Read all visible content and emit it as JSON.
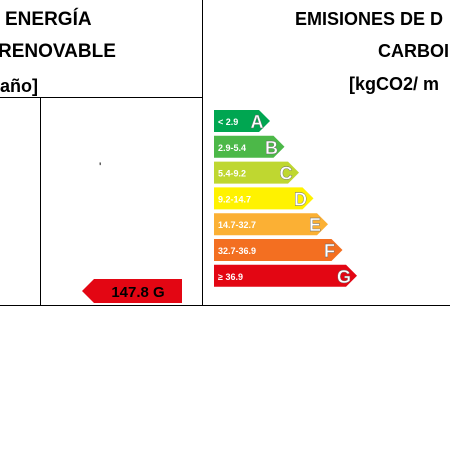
{
  "left_header": {
    "line1": "ENERGÍA",
    "line2": "RENOVABLE",
    "line3": "año]"
  },
  "right_header": {
    "line1": "EMISIONES DE D",
    "line2": "CARBOI",
    "line3": "[kgCO2/ m"
  },
  "tick_mark": "'",
  "current_rating": {
    "label": "147.8 G",
    "color": "#e30613"
  },
  "scale": [
    {
      "range": "< 2.9",
      "letter": "A",
      "color": "#00a651"
    },
    {
      "range": "2.9-5.4",
      "letter": "B",
      "color": "#4cb848"
    },
    {
      "range": "5.4-9.2",
      "letter": "C",
      "color": "#bfd730"
    },
    {
      "range": "9.2-14.7",
      "letter": "D",
      "color": "#fff200"
    },
    {
      "range": "14.7-32.7",
      "letter": "E",
      "color": "#fbb034"
    },
    {
      "range": "32.7-36.9",
      "letter": "F",
      "color": "#f36f21"
    },
    {
      "range": "≥ 36.9",
      "letter": "G",
      "color": "#e30613"
    }
  ]
}
